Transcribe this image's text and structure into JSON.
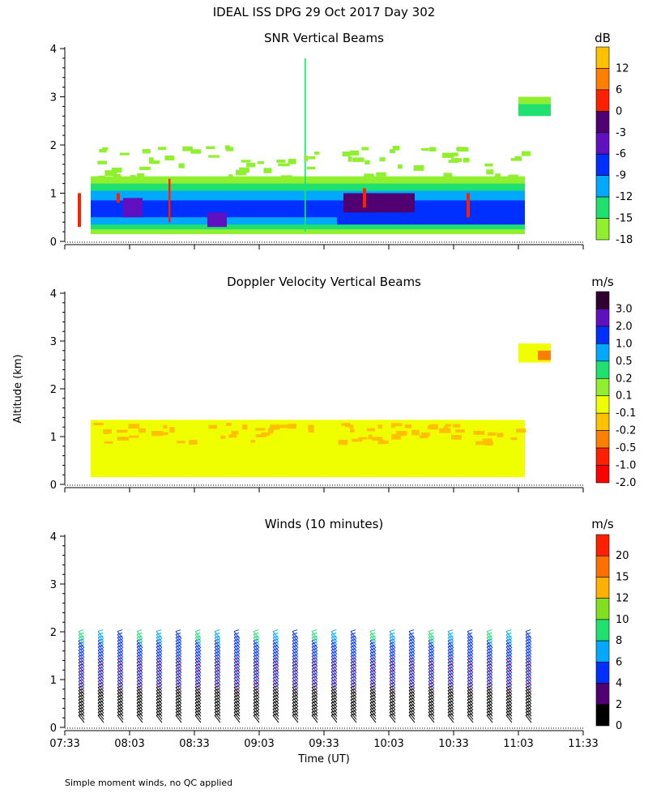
{
  "main_title": "IDEAL ISS DPG  29 Oct 2017 Day 302",
  "footnote": "Simple moment winds, no QC applied",
  "chart_data": [
    {
      "type": "heatmap",
      "title": "SNR Vertical Beams",
      "ylabel": "",
      "ylim": [
        0,
        4
      ],
      "yticks": [
        "0",
        "1",
        "2",
        "3",
        "4"
      ],
      "colorbar": {
        "unit": "dB",
        "labels": [
          "12",
          "6",
          "0",
          "-3",
          "-6",
          "-9",
          "-12",
          "-15",
          "-18"
        ],
        "colors": [
          "#ffc000",
          "#ff8000",
          "#ff2000",
          "#500070",
          "#6010c0",
          "#0030ff",
          "#00a8ff",
          "#20e070",
          "#90f030"
        ]
      },
      "cells": [
        {
          "t": [
            0.4,
            7.1
          ],
          "z": [
            0.15,
            1.35
          ],
          "color": "#90f030"
        },
        {
          "t": [
            0.4,
            7.1
          ],
          "z": [
            0.25,
            1.2
          ],
          "color": "#20e070"
        },
        {
          "t": [
            0.4,
            7.1
          ],
          "z": [
            0.35,
            1.05
          ],
          "color": "#00a8ff"
        },
        {
          "t": [
            0.4,
            7.1
          ],
          "z": [
            0.5,
            0.85
          ],
          "color": "#0030ff"
        },
        {
          "t": [
            4.2,
            7.1
          ],
          "z": [
            0.35,
            0.75
          ],
          "color": "#0030ff"
        },
        {
          "t": [
            4.3,
            5.4
          ],
          "z": [
            0.6,
            1.0
          ],
          "color": "#500070"
        },
        {
          "t": [
            0.9,
            1.2
          ],
          "z": [
            0.5,
            0.9
          ],
          "color": "#6010c0"
        },
        {
          "t": [
            2.2,
            2.5
          ],
          "z": [
            0.3,
            0.6
          ],
          "color": "#6010c0"
        },
        {
          "t": [
            0.2,
            0.25
          ],
          "z": [
            0.3,
            1.0
          ],
          "color": "#ff2000"
        },
        {
          "t": [
            0.8,
            0.85
          ],
          "z": [
            0.8,
            1.0
          ],
          "color": "#ff2000"
        },
        {
          "t": [
            1.6,
            1.63
          ],
          "z": [
            0.4,
            1.3
          ],
          "color": "#ff2000"
        },
        {
          "t": [
            4.6,
            4.65
          ],
          "z": [
            0.7,
            1.1
          ],
          "color": "#ff2000"
        },
        {
          "t": [
            6.2,
            6.25
          ],
          "z": [
            0.5,
            1.0
          ],
          "color": "#ff2000"
        },
        {
          "t": [
            3.7,
            3.72
          ],
          "z": [
            0.2,
            3.8
          ],
          "color": "#20e070"
        },
        {
          "t": [
            7.0,
            7.5
          ],
          "z": [
            2.6,
            2.85
          ],
          "color": "#20e070"
        },
        {
          "t": [
            7.0,
            7.5
          ],
          "z": [
            2.85,
            3.0
          ],
          "color": "#90f030"
        },
        {
          "t": [
            0.4,
            7.1
          ],
          "z": [
            1.35,
            2.0
          ],
          "color": "#90f030",
          "sparse": true
        }
      ]
    },
    {
      "type": "heatmap",
      "title": "Doppler Velocity Vertical Beams",
      "ylabel": "Altitude (km)",
      "ylim": [
        0,
        4
      ],
      "yticks": [
        "0",
        "1",
        "2",
        "3",
        "4"
      ],
      "colorbar": {
        "unit": "m/s",
        "labels": [
          "3.0",
          "2.0",
          "1.0",
          "0.5",
          "0.2",
          "0.1",
          "-0.1",
          "-0.2",
          "-0.5",
          "-1.0",
          "-2.0"
        ],
        "colors": [
          "#300030",
          "#6010c0",
          "#0030ff",
          "#00a8ff",
          "#20e070",
          "#90f030",
          "#f0ff00",
          "#ffc000",
          "#ff8000",
          "#ff2000",
          "#ff0000"
        ]
      },
      "cells": [
        {
          "t": [
            0.4,
            7.1
          ],
          "z": [
            0.15,
            1.35
          ],
          "color": "#f0ff00"
        },
        {
          "t": [
            0.4,
            7.1
          ],
          "z": [
            0.9,
            1.3
          ],
          "color": "#ffc000",
          "sparse": true
        },
        {
          "t": [
            7.0,
            7.5
          ],
          "z": [
            2.55,
            2.95
          ],
          "color": "#f0ff00"
        },
        {
          "t": [
            7.3,
            7.5
          ],
          "z": [
            2.6,
            2.8
          ],
          "color": "#ff8000"
        }
      ]
    },
    {
      "type": "barbs",
      "title": "Winds (10 minutes)",
      "xlabel": "Time (UT)",
      "ylim": [
        0,
        4
      ],
      "yticks": [
        "0",
        "1",
        "2",
        "3",
        "4"
      ],
      "xticks": [
        "07:33",
        "08:03",
        "08:33",
        "09:03",
        "09:33",
        "10:03",
        "10:33",
        "11:03",
        "11:33"
      ],
      "colorbar": {
        "unit": "m/s",
        "labels": [
          "20",
          "15",
          "12",
          "10",
          "8",
          "6",
          "4",
          "2",
          "0"
        ],
        "colors": [
          "#ff2000",
          "#ff7000",
          "#ffb000",
          "#80e020",
          "#20e070",
          "#00a8ff",
          "#0030ff",
          "#500070",
          "#000000"
        ]
      },
      "profile_times": [
        0.3,
        0.6,
        0.9,
        1.2,
        1.5,
        1.8,
        2.1,
        2.4,
        2.7,
        3.0,
        3.3,
        3.6,
        3.9,
        4.2,
        4.5,
        4.8,
        5.1,
        5.4,
        5.7,
        6.0,
        6.3,
        6.6,
        6.9,
        7.2
      ]
    }
  ]
}
